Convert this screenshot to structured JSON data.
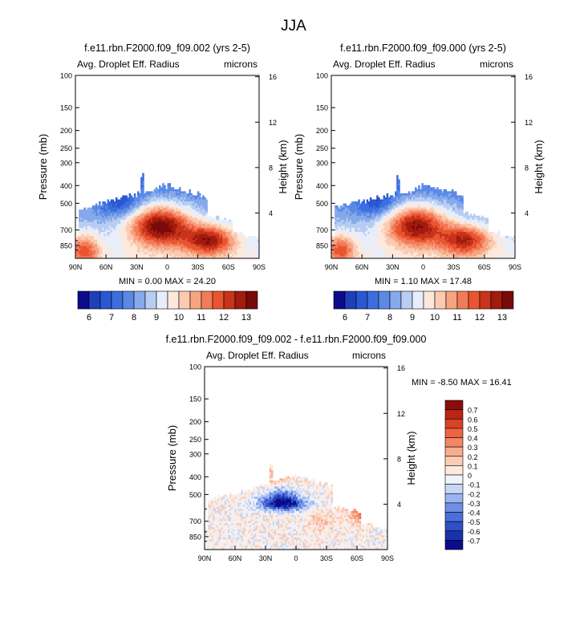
{
  "figure_title": "JJA",
  "colors": {
    "ramp": [
      "#0b0b8c",
      "#1f3fb8",
      "#2a57d3",
      "#3d6ee0",
      "#5a8ae6",
      "#86a9ea",
      "#b8cdf2",
      "#e6eefb",
      "#fde9dc",
      "#fbcab0",
      "#f7a483",
      "#f37b58",
      "#e9552f",
      "#c8331b",
      "#a21b0e",
      "#7a0a0a"
    ],
    "diff_ramp": [
      "#0b0b8c",
      "#1a32a8",
      "#2e4fc6",
      "#4a6fdc",
      "#6f8fe6",
      "#9bb4ef",
      "#c8d7f6",
      "#eef3fc",
      "#fdeadf",
      "#fbcdb6",
      "#f7ad8f",
      "#f38866",
      "#ec6440",
      "#d84225",
      "#b92614",
      "#8b0c0c"
    ]
  },
  "chart_data": [
    {
      "type": "heatmap",
      "id": "panel_a",
      "title": "f.e11.rbn.F2000.f09_f09.002 (yrs 2-5)",
      "left_label": "Avg. Droplet Eff. Radius",
      "right_label": "microns",
      "ylabel": "Pressure (mb)",
      "y2label": "Height (km)",
      "xticks": [
        "90N",
        "60N",
        "30N",
        "0",
        "30S",
        "60S",
        "90S"
      ],
      "x_values": [
        90,
        60,
        30,
        0,
        -30,
        -60,
        -90
      ],
      "yticks": [
        "100",
        "150",
        "200",
        "250",
        "300",
        "400",
        "500",
        "700",
        "850"
      ],
      "y_values": [
        100,
        150,
        200,
        250,
        300,
        400,
        500,
        700,
        850
      ],
      "ylim": [
        100,
        1000
      ],
      "y2ticks": [
        "16",
        "12",
        "8",
        "4"
      ],
      "y2_values": [
        16,
        12,
        8,
        4
      ],
      "stats": "MIN =  0.00  MAX = 24.20",
      "contour_levels": [
        6,
        6.5,
        7,
        7.5,
        8,
        8.5,
        9,
        9.5,
        10,
        10.5,
        11,
        11.5,
        12,
        12.5,
        13
      ],
      "colorbar_labels": [
        "6",
        "7",
        "8",
        "9",
        "10",
        "11",
        "12",
        "13"
      ],
      "colorbar_label_values": [
        6,
        7,
        8,
        9,
        10,
        11,
        12,
        13
      ],
      "variant": 0
    },
    {
      "type": "heatmap",
      "id": "panel_b",
      "title": "f.e11.rbn.F2000.f09_f09.000 (yrs 2-5)",
      "left_label": "Avg. Droplet Eff. Radius",
      "right_label": "microns",
      "ylabel": "Pressure (mb)",
      "y2label": "Height (km)",
      "xticks": [
        "90N",
        "60N",
        "30N",
        "0",
        "30S",
        "60S",
        "90S"
      ],
      "x_values": [
        90,
        60,
        30,
        0,
        -30,
        -60,
        -90
      ],
      "yticks": [
        "100",
        "150",
        "200",
        "250",
        "300",
        "400",
        "500",
        "700",
        "850"
      ],
      "y_values": [
        100,
        150,
        200,
        250,
        300,
        400,
        500,
        700,
        850
      ],
      "ylim": [
        100,
        1000
      ],
      "y2ticks": [
        "16",
        "12",
        "8",
        "4"
      ],
      "y2_values": [
        16,
        12,
        8,
        4
      ],
      "stats": "MIN =  1.10  MAX = 17.48",
      "contour_levels": [
        6,
        6.5,
        7,
        7.5,
        8,
        8.5,
        9,
        9.5,
        10,
        10.5,
        11,
        11.5,
        12,
        12.5,
        13
      ],
      "colorbar_labels": [
        "6",
        "7",
        "8",
        "9",
        "10",
        "11",
        "12",
        "13"
      ],
      "colorbar_label_values": [
        6,
        7,
        8,
        9,
        10,
        11,
        12,
        13
      ],
      "variant": 1
    },
    {
      "type": "heatmap",
      "id": "panel_diff",
      "title": "f.e11.rbn.F2000.f09_f09.002 - f.e11.rbn.F2000.f09_f09.000",
      "left_label": "Avg. Droplet Eff. Radius",
      "right_label": "microns",
      "ylabel": "Pressure (mb)",
      "y2label": "Height (km)",
      "xticks": [
        "90N",
        "60N",
        "30N",
        "0",
        "30S",
        "60S",
        "90S"
      ],
      "x_values": [
        90,
        60,
        30,
        0,
        -30,
        -60,
        -90
      ],
      "yticks": [
        "100",
        "150",
        "200",
        "250",
        "300",
        "400",
        "500",
        "700",
        "850"
      ],
      "y_values": [
        100,
        150,
        200,
        250,
        300,
        400,
        500,
        700,
        850
      ],
      "ylim": [
        100,
        1000
      ],
      "y2ticks": [
        "16",
        "12",
        "8",
        "4"
      ],
      "y2_values": [
        16,
        12,
        8,
        4
      ],
      "stats": "MIN = -8.50  MAX = 16.41",
      "contour_levels": [
        -0.7,
        -0.6,
        -0.5,
        -0.4,
        -0.3,
        -0.2,
        -0.1,
        0,
        0.1,
        0.2,
        0.3,
        0.4,
        0.5,
        0.6,
        0.7
      ],
      "colorbar_labels": [
        "0.7",
        "0.6",
        "0.5",
        "0.4",
        "0.3",
        "0.2",
        "0.1",
        "0",
        "-0.1",
        "-0.2",
        "-0.3",
        "-0.4",
        "-0.5",
        "-0.6",
        "-0.7"
      ],
      "colorbar_label_values": [
        0.7,
        0.6,
        0.5,
        0.4,
        0.3,
        0.2,
        0.1,
        0,
        -0.1,
        -0.2,
        -0.3,
        -0.4,
        -0.5,
        -0.6,
        -0.7
      ],
      "variant": 2
    }
  ]
}
